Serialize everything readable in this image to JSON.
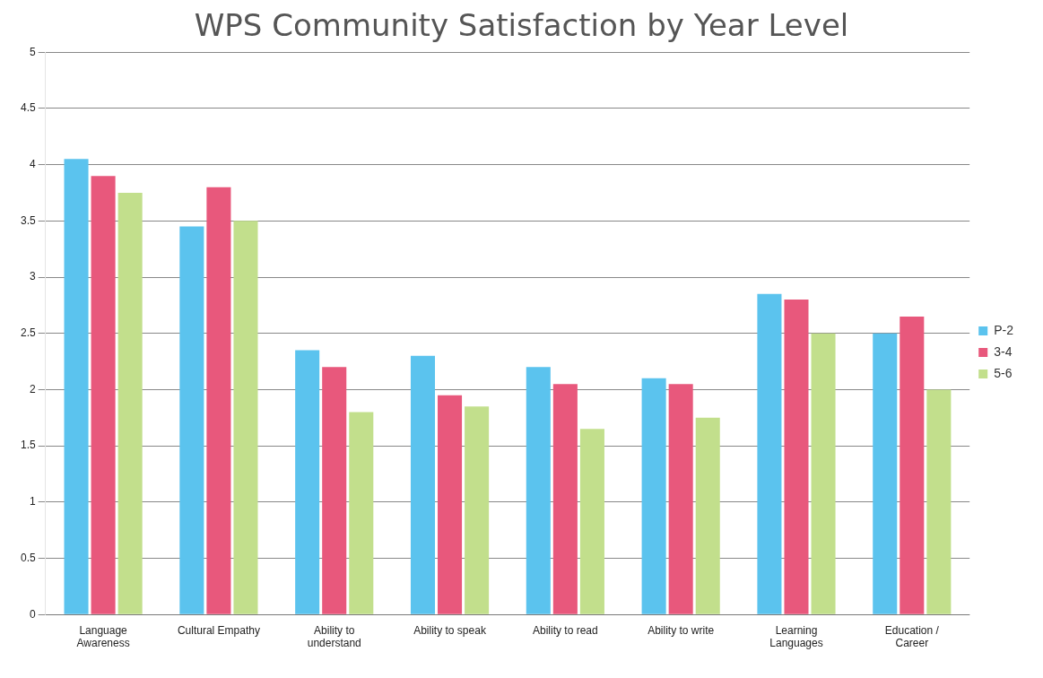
{
  "chart_data": {
    "type": "bar",
    "title": "WPS Community Satisfaction by Year Level",
    "categories": [
      "Language Awareness",
      "Cultural Empathy",
      "Ability to understand",
      "Ability to speak",
      "Ability to read",
      "Ability to write",
      "Learning Languages",
      "Education / Career"
    ],
    "series": [
      {
        "name": "P-2",
        "color": "#5bc3ee",
        "values": [
          4.05,
          3.45,
          2.35,
          2.3,
          2.2,
          2.1,
          2.85,
          2.5
        ]
      },
      {
        "name": "3-4",
        "color": "#e8587c",
        "values": [
          3.9,
          3.8,
          2.2,
          1.95,
          2.05,
          2.05,
          2.8,
          2.65
        ]
      },
      {
        "name": "5-6",
        "color": "#c2df8c",
        "values": [
          3.75,
          3.5,
          1.8,
          1.85,
          1.65,
          1.75,
          2.5,
          2.0
        ]
      }
    ],
    "ylim": [
      0,
      5
    ],
    "yticks": [
      0,
      0.5,
      1,
      1.5,
      2,
      2.5,
      3,
      3.5,
      4,
      4.5,
      5
    ],
    "grid": "y",
    "legend": "right"
  }
}
